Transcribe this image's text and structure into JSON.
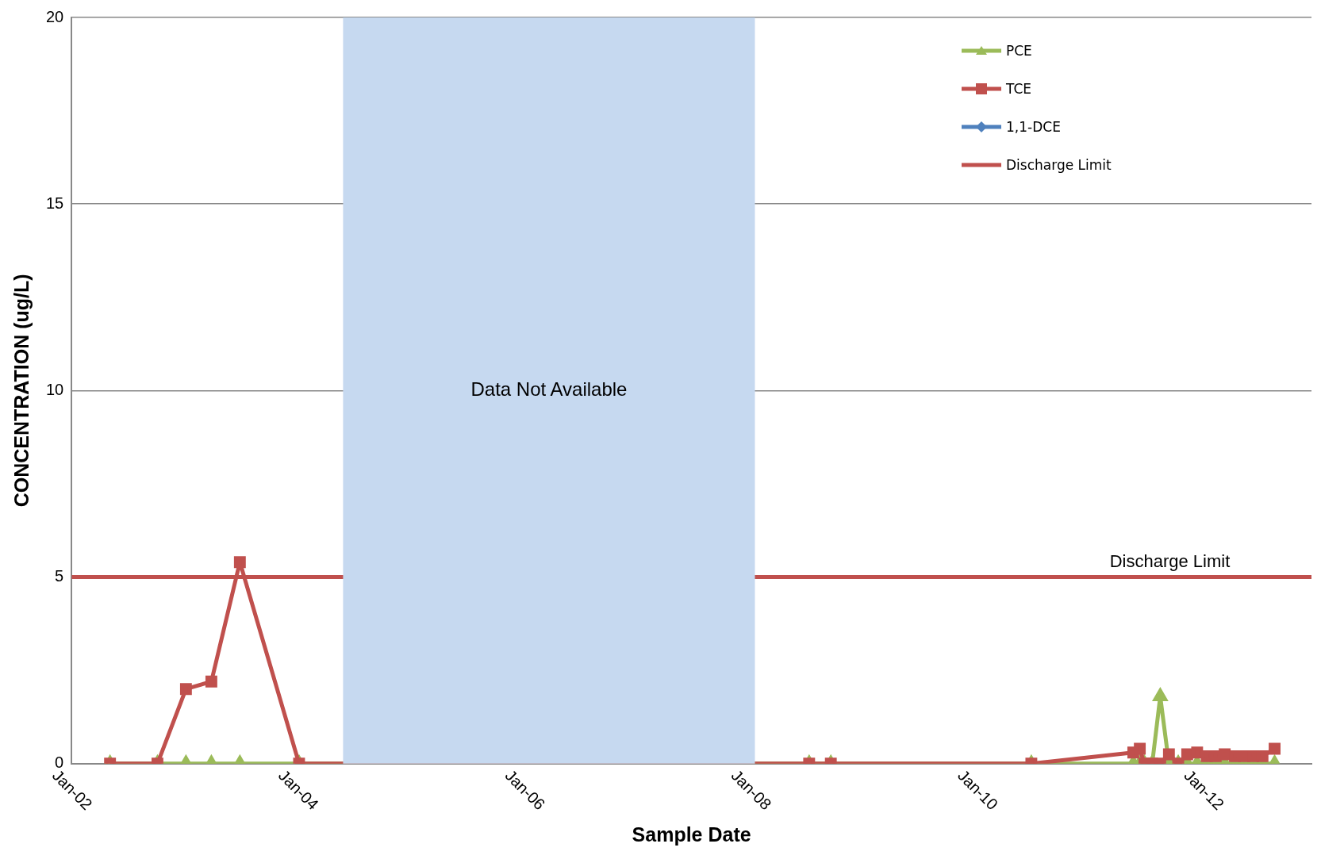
{
  "chart_data": {
    "type": "line",
    "xlabel": "Sample Date",
    "ylabel": "CONCENTRATION (ug/L)",
    "xlim": [
      "2002-01-01",
      "2012-12-15"
    ],
    "xticks": [
      {
        "value": "2002-01",
        "label": "Jan-02"
      },
      {
        "value": "2004-01",
        "label": "Jan-04"
      },
      {
        "value": "2006-01",
        "label": "Jan-06"
      },
      {
        "value": "2008-01",
        "label": "Jan-08"
      },
      {
        "value": "2010-01",
        "label": "Jan-10"
      },
      {
        "value": "2012-01",
        "label": "Jan-12"
      }
    ],
    "ylim": [
      0,
      20
    ],
    "yticks": [
      0,
      5,
      10,
      15,
      20
    ],
    "grid": "y",
    "legend": "top right",
    "x": [
      "2002-05-05",
      "2002-10-05",
      "2003-01-05",
      "2003-03-28",
      "2003-06-28",
      "2004-01-05",
      "2008-07-08",
      "2008-09-16",
      "2010-06-25",
      "2011-05-20",
      "2011-06-10",
      "2011-06-25",
      "2011-07-20",
      "2011-08-15",
      "2011-09-12",
      "2011-10-12",
      "2011-11-10",
      "2011-12-12",
      "2012-01-12",
      "2012-02-10",
      "2012-03-10",
      "2012-04-12",
      "2012-05-12",
      "2012-06-10",
      "2012-07-10",
      "2012-08-18"
    ],
    "series": [
      {
        "name": "PCE",
        "color": "#9bbb59",
        "marker": "triangle",
        "values": [
          0,
          0,
          0,
          0,
          0,
          0,
          0,
          0,
          0,
          0,
          0,
          0,
          0,
          1.8,
          0,
          0,
          0,
          0,
          0,
          0,
          0,
          0,
          0,
          0,
          0,
          0
        ]
      },
      {
        "name": "TCE",
        "color": "#c0504d",
        "marker": "square",
        "values": [
          0,
          0,
          2.0,
          2.2,
          5.4,
          0,
          0,
          0,
          0,
          0.3,
          0.4,
          0,
          0,
          0,
          0.25,
          0,
          0.25,
          0.3,
          0.2,
          0.2,
          0.25,
          0.2,
          0.2,
          0.2,
          0.2,
          0.4
        ]
      },
      {
        "name": "1,1-DCE",
        "color": "#4f81bd",
        "marker": "diamond",
        "values": [
          null,
          null,
          null,
          null,
          null,
          null,
          null,
          null,
          null,
          null,
          null,
          null,
          null,
          null,
          null,
          null,
          null,
          null,
          null,
          null,
          null,
          null,
          null,
          null,
          null,
          null
        ]
      },
      {
        "name": "Discharge Limit",
        "color": "#c0504d",
        "marker": "none",
        "x": [
          "2002-01-01",
          "2012-12-15"
        ],
        "values": [
          5,
          5
        ]
      }
    ],
    "bands": [
      {
        "axis": "x",
        "from": "2004-05-26",
        "to": "2008-01-15",
        "label": "Data Not Available",
        "color": "#c6d9f0"
      }
    ],
    "annotations": [
      {
        "text": "Discharge Limit",
        "x": "2011-09-15",
        "y": 5
      }
    ]
  }
}
